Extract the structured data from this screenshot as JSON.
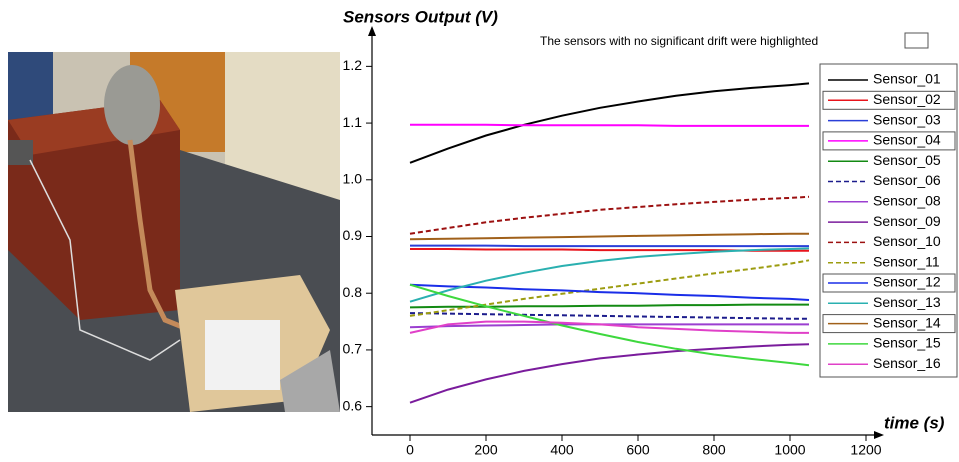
{
  "chart_data": {
    "type": "line",
    "title": "Sensors Output (V)",
    "x_label": "time (s)",
    "annotation": "The sensors with no significant drift were highlighted",
    "x": [
      0,
      100,
      200,
      300,
      400,
      500,
      600,
      700,
      800,
      900,
      1000,
      1050
    ],
    "xlim": [
      -100,
      1250
    ],
    "xticks": [
      0,
      200,
      400,
      600,
      800,
      1000,
      1200
    ],
    "ylim": [
      0.55,
      1.25
    ],
    "yticks": [
      0.6,
      0.7,
      0.8,
      0.9,
      {
        "value": 1,
        "label": "1.0"
      },
      1.1,
      1.2
    ],
    "series": [
      {
        "name": "Sensor_01",
        "color": "#000000",
        "values": [
          1.03,
          1.055,
          1.078,
          1.097,
          1.113,
          1.127,
          1.138,
          1.148,
          1.156,
          1.162,
          1.167,
          1.17
        ]
      },
      {
        "name": "Sensor_02",
        "color": "#e8141c",
        "highlighted": true,
        "values": [
          0.878,
          0.878,
          0.877,
          0.877,
          0.877,
          0.876,
          0.876,
          0.876,
          0.876,
          0.875,
          0.875,
          0.875
        ]
      },
      {
        "name": "Sensor_03",
        "color": "#2a3fd8",
        "values": [
          0.884,
          0.884,
          0.884,
          0.883,
          0.883,
          0.883,
          0.883,
          0.883,
          0.883,
          0.883,
          0.883,
          0.883
        ]
      },
      {
        "name": "Sensor_04",
        "color": "#ff00ff",
        "highlighted": true,
        "values": [
          1.097,
          1.097,
          1.097,
          1.096,
          1.096,
          1.096,
          1.096,
          1.095,
          1.095,
          1.095,
          1.095,
          1.095
        ]
      },
      {
        "name": "Sensor_05",
        "color": "#138a13",
        "values": [
          0.775,
          0.776,
          0.776,
          0.777,
          0.777,
          0.778,
          0.778,
          0.779,
          0.779,
          0.78,
          0.78,
          0.78
        ]
      },
      {
        "name": "Sensor_06",
        "color": "#1c1c8c",
        "dash": true,
        "values": [
          0.765,
          0.764,
          0.763,
          0.762,
          0.761,
          0.76,
          0.759,
          0.758,
          0.757,
          0.756,
          0.755,
          0.755
        ]
      },
      {
        "name": "Sensor_08",
        "color": "#9b3fd0",
        "values": [
          0.74,
          0.742,
          0.743,
          0.744,
          0.745,
          0.745,
          0.745,
          0.745,
          0.745,
          0.745,
          0.745,
          0.745
        ]
      },
      {
        "name": "Sensor_09",
        "color": "#7a1c9c",
        "values": [
          0.607,
          0.63,
          0.648,
          0.663,
          0.675,
          0.685,
          0.692,
          0.698,
          0.702,
          0.706,
          0.709,
          0.71
        ]
      },
      {
        "name": "Sensor_10",
        "color": "#9c1010",
        "dash": true,
        "values": [
          0.905,
          0.915,
          0.925,
          0.933,
          0.94,
          0.947,
          0.952,
          0.957,
          0.961,
          0.965,
          0.968,
          0.97
        ]
      },
      {
        "name": "Sensor_11",
        "color": "#9c9c10",
        "dash": true,
        "values": [
          0.76,
          0.77,
          0.78,
          0.79,
          0.799,
          0.808,
          0.817,
          0.826,
          0.835,
          0.843,
          0.852,
          0.858
        ]
      },
      {
        "name": "Sensor_12",
        "color": "#1a2ee8",
        "highlighted": true,
        "values": [
          0.815,
          0.812,
          0.81,
          0.807,
          0.805,
          0.802,
          0.8,
          0.797,
          0.795,
          0.792,
          0.79,
          0.788
        ]
      },
      {
        "name": "Sensor_13",
        "color": "#2ab0b0",
        "values": [
          0.785,
          0.805,
          0.822,
          0.836,
          0.848,
          0.857,
          0.864,
          0.869,
          0.873,
          0.876,
          0.878,
          0.879
        ]
      },
      {
        "name": "Sensor_14",
        "color": "#a0601a",
        "highlighted": true,
        "values": [
          0.895,
          0.896,
          0.897,
          0.898,
          0.899,
          0.9,
          0.901,
          0.902,
          0.903,
          0.904,
          0.905,
          0.905
        ]
      },
      {
        "name": "Sensor_15",
        "color": "#3ed83e",
        "values": [
          0.815,
          0.795,
          0.777,
          0.76,
          0.743,
          0.728,
          0.714,
          0.702,
          0.692,
          0.684,
          0.677,
          0.673
        ]
      },
      {
        "name": "Sensor_16",
        "color": "#e040c8",
        "values": [
          0.73,
          0.745,
          0.75,
          0.75,
          0.748,
          0.745,
          0.74,
          0.737,
          0.734,
          0.732,
          0.73,
          0.73
        ]
      }
    ]
  }
}
